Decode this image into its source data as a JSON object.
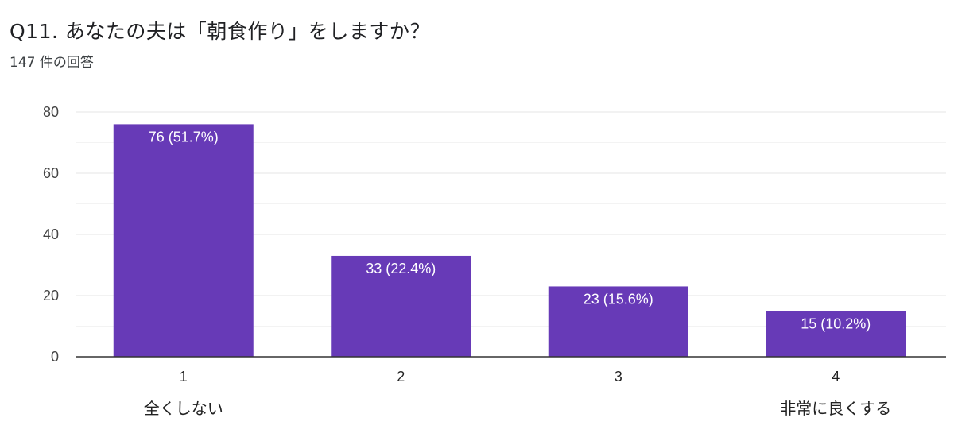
{
  "header": {
    "title": "Q11.  あなたの夫は「朝食作り」をしますか？",
    "response_count": "147 件の回答"
  },
  "colors": {
    "bar": "#673ab7",
    "grid_major": "#e6e6e6",
    "grid_minor": "#f3f3f3",
    "axis": "#333333"
  },
  "chart_data": {
    "type": "bar",
    "categories": [
      "1",
      "2",
      "3",
      "4"
    ],
    "values": [
      76,
      33,
      23,
      15
    ],
    "data_labels": [
      "76 (51.7%)",
      "33 (22.4%)",
      "23 (15.6%)",
      "15 (10.2%)"
    ],
    "y_ticks": [
      0,
      20,
      40,
      60,
      80
    ],
    "ylim": [
      0,
      80
    ],
    "grid": true,
    "scale_anchor_labels": {
      "low": "全くしない",
      "high": "非常に良くする"
    }
  }
}
